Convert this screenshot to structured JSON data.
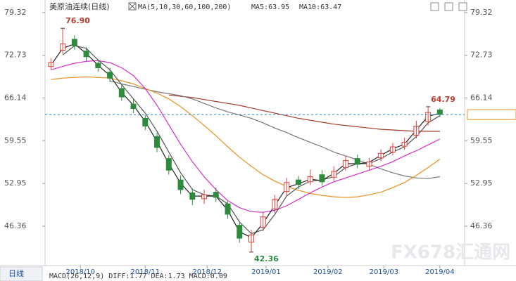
{
  "chart_data": {
    "type": "candlestick",
    "title": "美原油连续(日线)",
    "indicator": "MA(5,10,30,60,100,200)",
    "readouts": [
      "MA5:63.95",
      "MA10:63.47"
    ],
    "x": [
      0,
      4,
      8,
      12,
      16,
      20,
      24,
      28,
      32,
      36,
      40,
      44,
      48,
      52,
      56,
      60,
      64,
      68,
      72,
      76,
      80,
      84,
      88,
      92,
      96,
      100,
      104,
      108,
      112,
      116,
      120,
      124,
      128,
      132
    ],
    "open": [
      71.0,
      73.5,
      75.2,
      73.4,
      71.5,
      70.1,
      67.6,
      65.2,
      63.0,
      60.2,
      56.8,
      53.5,
      51.5,
      50.6,
      51.6,
      49.8,
      46.5,
      43.9,
      46.2,
      49.0,
      51.7,
      53.5,
      53.2,
      54.3,
      53.9,
      55.4,
      56.8,
      55.6,
      56.9,
      57.8,
      58.7,
      60.4,
      62.5,
      64.3
    ],
    "high": [
      72.3,
      76.9,
      75.8,
      74.0,
      72.0,
      70.8,
      68.2,
      66.0,
      63.5,
      60.8,
      57.3,
      54.2,
      52.2,
      52.0,
      52.3,
      50.2,
      46.9,
      45.8,
      48.5,
      51.2,
      53.8,
      54.1,
      55.1,
      55.0,
      55.6,
      57.2,
      57.4,
      56.9,
      58.2,
      59.2,
      60.0,
      62.6,
      64.79,
      64.6
    ],
    "low": [
      70.5,
      73.0,
      73.6,
      71.8,
      70.2,
      68.6,
      65.7,
      63.8,
      61.2,
      57.8,
      54.3,
      51.3,
      49.6,
      49.8,
      50.1,
      47.5,
      43.8,
      42.36,
      45.6,
      48.4,
      51.0,
      52.1,
      52.7,
      52.6,
      53.4,
      54.9,
      55.3,
      55.0,
      56.4,
      57.3,
      58.2,
      59.9,
      61.9,
      63.2
    ],
    "close": [
      71.6,
      74.5,
      74.2,
      72.5,
      70.8,
      69.2,
      66.3,
      64.5,
      61.8,
      58.5,
      55.0,
      52.0,
      50.5,
      51.2,
      50.8,
      48.2,
      44.5,
      45.0,
      47.8,
      50.5,
      53.1,
      52.8,
      54.0,
      53.2,
      54.8,
      56.5,
      55.9,
      56.3,
      57.6,
      58.6,
      59.3,
      61.8,
      63.9,
      63.6
    ],
    "up_color": "#e0403a",
    "down_color": "#2e8b3e",
    "series": [
      {
        "color": "#222222",
        "values": [
          71.2,
          73.8,
          74.5,
          73.0,
          71.2,
          69.6,
          67.0,
          65.0,
          62.5,
          59.4,
          56.0,
          53.0,
          51.0,
          51.0,
          51.0,
          48.8,
          45.5,
          44.6,
          46.8,
          49.6,
          52.3,
          52.9,
          53.6,
          53.4,
          54.5,
          56.0,
          56.0,
          56.2,
          57.3,
          58.3,
          59.0,
          61.2,
          63.3,
          63.8
        ]
      },
      {
        "color": "#555555",
        "values": [
          null,
          72.8,
          74.2,
          73.8,
          72.0,
          70.5,
          68.2,
          66.0,
          63.8,
          61.0,
          57.8,
          54.6,
          52.0,
          51.2,
          51.0,
          49.8,
          47.0,
          45.2,
          45.8,
          48.2,
          51.0,
          52.4,
          53.3,
          53.5,
          54.0,
          55.4,
          56.0,
          56.0,
          56.8,
          57.8,
          58.6,
          60.2,
          62.3,
          63.4
        ]
      },
      {
        "color": "#d62fc8",
        "values": [
          70.5,
          71.0,
          71.5,
          71.8,
          71.9,
          71.6,
          70.8,
          69.6,
          67.6,
          65.0,
          62.0,
          59.0,
          56.3,
          54.0,
          52.0,
          50.3,
          49.2,
          48.6,
          48.5,
          48.8,
          49.5,
          50.5,
          51.5,
          52.4,
          53.2,
          53.8,
          54.4,
          55.0,
          55.6,
          56.3,
          57.2,
          58.0,
          58.9,
          59.8
        ]
      },
      {
        "color": "#e8901c",
        "values": [
          69.0,
          69.2,
          69.3,
          69.4,
          69.3,
          69.2,
          68.8,
          68.3,
          67.6,
          66.9,
          66.0,
          64.8,
          63.4,
          61.9,
          60.3,
          58.6,
          57.0,
          55.6,
          54.3,
          53.3,
          52.5,
          51.9,
          51.4,
          51.1,
          50.9,
          50.8,
          50.9,
          51.2,
          51.6,
          52.3,
          53.1,
          54.2,
          55.4,
          56.7
        ]
      },
      {
        "color": "#777777",
        "values": [
          null,
          null,
          null,
          null,
          null,
          68.8,
          68.3,
          67.9,
          67.5,
          67.1,
          66.8,
          66.5,
          66.0,
          65.3,
          64.6,
          64.0,
          63.5,
          63.0,
          62.3,
          61.5,
          60.8,
          60.0,
          59.3,
          58.6,
          57.8,
          57.2,
          56.6,
          55.9,
          55.2,
          54.6,
          54.1,
          53.8,
          53.7,
          54.0
        ]
      },
      {
        "color": "#a83a2a",
        "values": [
          null,
          null,
          null,
          null,
          null,
          null,
          null,
          null,
          null,
          null,
          66.6,
          66.4,
          66.2,
          65.9,
          65.6,
          65.3,
          65.0,
          64.6,
          64.2,
          63.8,
          63.4,
          63.0,
          62.7,
          62.4,
          62.1,
          61.9,
          61.7,
          61.5,
          61.3,
          61.2,
          61.1,
          61.0,
          61.0,
          61.0
        ]
      }
    ],
    "annotations": [
      {
        "x": 4,
        "value": 76.9,
        "label": "76.90",
        "color": "#c0392b"
      },
      {
        "x": 68,
        "value": 42.36,
        "label": "42.36",
        "color": "#2e8b3e"
      },
      {
        "x": 128,
        "value": 64.79,
        "label": "64.79",
        "color": "#c0392b"
      }
    ],
    "last_price": 63.57,
    "xlim": [
      -2,
      138
    ],
    "xticks": [
      {
        "value": 10,
        "label": "2018/10"
      },
      {
        "value": 32,
        "label": "2018/11"
      },
      {
        "value": 53,
        "label": "2018/12"
      },
      {
        "value": 73,
        "label": "2019/01"
      },
      {
        "value": 94,
        "label": "2019/02"
      },
      {
        "value": 113,
        "label": "2019/03"
      },
      {
        "value": 132,
        "label": "2019/04"
      }
    ],
    "ylim": [
      40.5,
      80.5
    ],
    "yticks": [
      79.32,
      72.73,
      66.14,
      59.55,
      52.95,
      46.36
    ]
  },
  "footer": {
    "tab": "日线",
    "macd": "MACD(26,12,9) DIFF:1.77 DEA:1.73 MACD:0.09"
  },
  "watermark": "FX678汇通网"
}
